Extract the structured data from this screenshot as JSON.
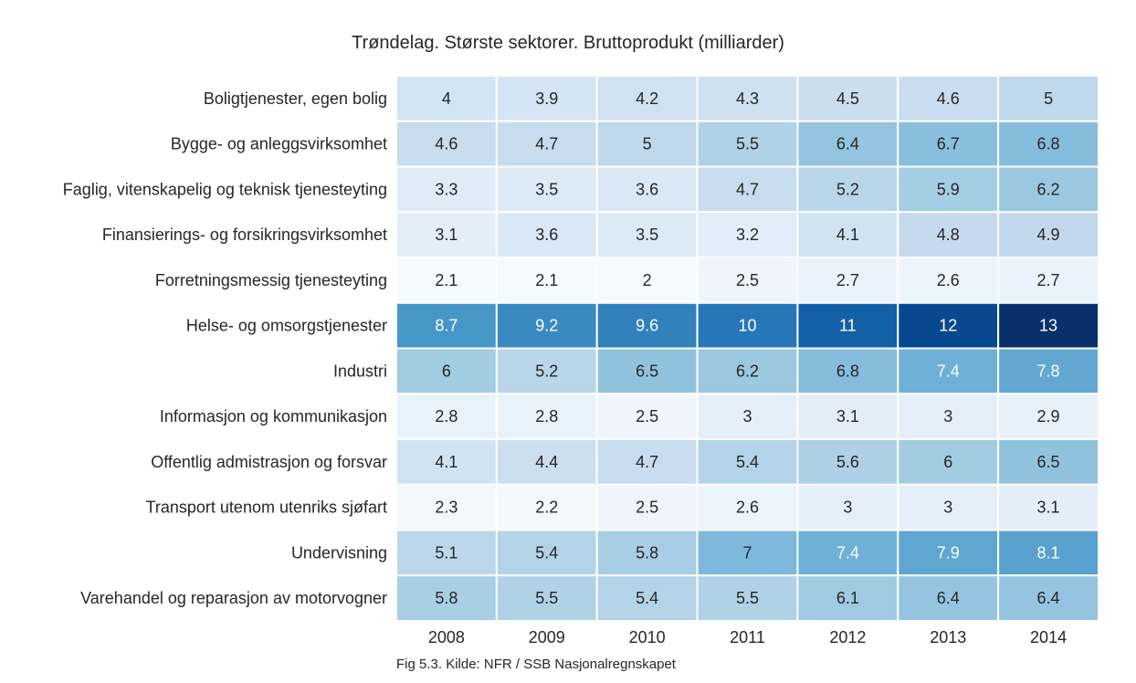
{
  "chart_data": {
    "type": "heatmap",
    "title": "Trøndelag. Største sektorer. Bruttoprodukt (milliarder)",
    "caption": "Fig 5.3. Kilde: NFR / SSB Nasjonalregnskapet",
    "columns": [
      "2008",
      "2009",
      "2010",
      "2011",
      "2012",
      "2013",
      "2014"
    ],
    "rows": [
      "Boligtjenester, egen bolig",
      "Bygge- og anleggsvirksomhet",
      "Faglig, vitenskapelig og teknisk tjenesteyting",
      "Finansierings- og forsikringsvirksomhet",
      "Forretningsmessig tjenesteyting",
      "Helse- og omsorgstjenester",
      "Industri",
      "Informasjon og kommunikasjon",
      "Offentlig admistrasjon og forsvar",
      "Transport utenom utenriks sjøfart",
      "Undervisning",
      "Varehandel og reparasjon av motorvogner"
    ],
    "values": [
      [
        4,
        3.9,
        4.2,
        4.3,
        4.5,
        4.6,
        5
      ],
      [
        4.6,
        4.7,
        5,
        5.5,
        6.4,
        6.7,
        6.8
      ],
      [
        3.3,
        3.5,
        3.6,
        4.7,
        5.2,
        5.9,
        6.2
      ],
      [
        3.1,
        3.6,
        3.5,
        3.2,
        4.1,
        4.8,
        4.9
      ],
      [
        2.1,
        2.1,
        2,
        2.5,
        2.7,
        2.6,
        2.7
      ],
      [
        8.7,
        9.2,
        9.6,
        10,
        11,
        12,
        13
      ],
      [
        6,
        5.2,
        6.5,
        6.2,
        6.8,
        7.4,
        7.8
      ],
      [
        2.8,
        2.8,
        2.5,
        3,
        3.1,
        3,
        2.9
      ],
      [
        4.1,
        4.4,
        4.7,
        5.4,
        5.6,
        6,
        6.5
      ],
      [
        2.3,
        2.2,
        2.5,
        2.6,
        3,
        3,
        3.1
      ],
      [
        5.1,
        5.4,
        5.8,
        7,
        7.4,
        7.9,
        8.1
      ],
      [
        5.8,
        5.5,
        5.4,
        5.5,
        6.1,
        6.4,
        6.4
      ]
    ],
    "colormap": "Blues",
    "colorbar": false
  }
}
